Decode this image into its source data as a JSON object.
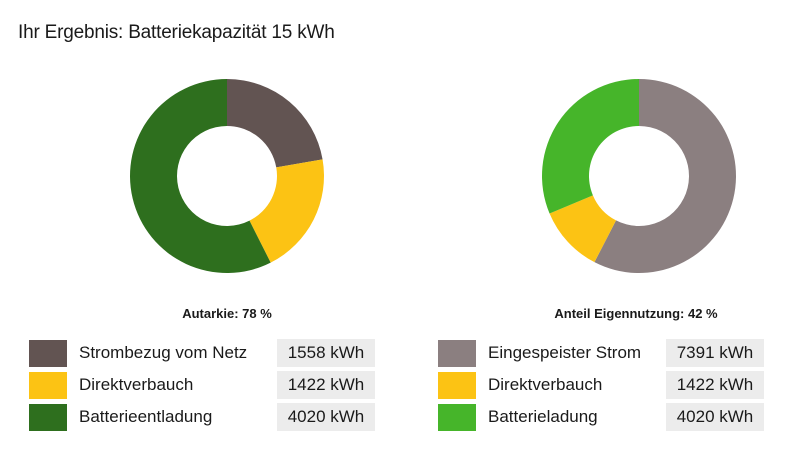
{
  "title": "Ihr Ergebnis: Batteriekapazität 15 kWh",
  "chart_data": [
    {
      "type": "pie",
      "style": "donut",
      "caption": "Autarkie: 78 %",
      "slices": [
        {
          "name": "Strombezug vom Netz",
          "value": 1558,
          "display": "1558 kWh",
          "color": "#625452"
        },
        {
          "name": "Direktverbauch",
          "value": 1422,
          "display": "1422 kWh",
          "color": "#fcc314"
        },
        {
          "name": "Batterieentladung",
          "value": 4020,
          "display": "4020 kWh",
          "color": "#2e6f1e"
        }
      ]
    },
    {
      "type": "pie",
      "style": "donut",
      "caption": "Anteil Eigennutzung: 42 %",
      "slices": [
        {
          "name": "Eingespeister Strom",
          "value": 7391,
          "display": "7391 kWh",
          "color": "#8b7f80"
        },
        {
          "name": "Direktverbauch",
          "value": 1422,
          "display": "1422 kWh",
          "color": "#fcc314"
        },
        {
          "name": "Batterieladung",
          "value": 4020,
          "display": "4020 kWh",
          "color": "#46b52a"
        }
      ]
    }
  ]
}
